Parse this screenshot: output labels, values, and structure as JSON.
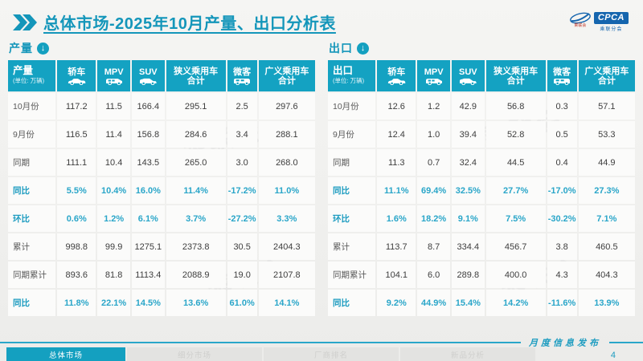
{
  "page": {
    "title": "总体市场-2025年10月产量、出口分析表",
    "logo_text": "CPCA",
    "logo_subtext": "乘联分会",
    "logo_small_text": "乘联会",
    "footer_caption": "月度信息发布",
    "page_number": "4",
    "watermark": "乘联会",
    "accent_color": "#14a0c0",
    "header_color": "#14a2c2",
    "highlight_text_color": "#2aa6c9"
  },
  "footer_tabs": [
    {
      "label": "总体市场",
      "active": true
    },
    {
      "label": "细分市场",
      "active": false
    },
    {
      "label": "厂商排名",
      "active": false
    },
    {
      "label": "新品分析",
      "active": false
    }
  ],
  "tables": [
    {
      "section_title": "产量",
      "row_header": "产量",
      "unit": "(单位: 万辆)",
      "columns": [
        {
          "label": "轿车",
          "icon": "sedan-icon"
        },
        {
          "label": "MPV",
          "icon": "mpv-icon"
        },
        {
          "label": "SUV",
          "icon": "suv-icon"
        },
        {
          "label": "狭义乘用车合计",
          "icon": null
        },
        {
          "label": "微客",
          "icon": "microvan-icon"
        },
        {
          "label": "广义乘用车合计",
          "icon": null
        }
      ],
      "rows": [
        {
          "label": "10月份",
          "highlight": false,
          "values": [
            "117.2",
            "11.5",
            "166.4",
            "295.1",
            "2.5",
            "297.6"
          ]
        },
        {
          "label": "9月份",
          "highlight": false,
          "values": [
            "116.5",
            "11.4",
            "156.8",
            "284.6",
            "3.4",
            "288.1"
          ]
        },
        {
          "label": "同期",
          "highlight": false,
          "values": [
            "111.1",
            "10.4",
            "143.5",
            "265.0",
            "3.0",
            "268.0"
          ]
        },
        {
          "label": "同比",
          "highlight": true,
          "values": [
            "5.5%",
            "10.4%",
            "16.0%",
            "11.4%",
            "-17.2%",
            "11.0%"
          ]
        },
        {
          "label": "环比",
          "highlight": true,
          "values": [
            "0.6%",
            "1.2%",
            "6.1%",
            "3.7%",
            "-27.2%",
            "3.3%"
          ]
        },
        {
          "label": "累计",
          "highlight": false,
          "values": [
            "998.8",
            "99.9",
            "1275.1",
            "2373.8",
            "30.5",
            "2404.3"
          ]
        },
        {
          "label": "同期累计",
          "highlight": false,
          "values": [
            "893.6",
            "81.8",
            "1113.4",
            "2088.9",
            "19.0",
            "2107.8"
          ]
        },
        {
          "label": "同比",
          "highlight": true,
          "values": [
            "11.8%",
            "22.1%",
            "14.5%",
            "13.6%",
            "61.0%",
            "14.1%"
          ]
        }
      ]
    },
    {
      "section_title": "出口",
      "row_header": "出口",
      "unit": "(单位: 万辆)",
      "columns": [
        {
          "label": "轿车",
          "icon": "sedan-icon"
        },
        {
          "label": "MPV",
          "icon": "mpv-icon"
        },
        {
          "label": "SUV",
          "icon": "suv-icon"
        },
        {
          "label": "狭义乘用车合计",
          "icon": null
        },
        {
          "label": "微客",
          "icon": "microvan-icon"
        },
        {
          "label": "广义乘用车合计",
          "icon": null
        }
      ],
      "rows": [
        {
          "label": "10月份",
          "highlight": false,
          "values": [
            "12.6",
            "1.2",
            "42.9",
            "56.8",
            "0.3",
            "57.1"
          ]
        },
        {
          "label": "9月份",
          "highlight": false,
          "values": [
            "12.4",
            "1.0",
            "39.4",
            "52.8",
            "0.5",
            "53.3"
          ]
        },
        {
          "label": "同期",
          "highlight": false,
          "values": [
            "11.3",
            "0.7",
            "32.4",
            "44.5",
            "0.4",
            "44.9"
          ]
        },
        {
          "label": "同比",
          "highlight": true,
          "values": [
            "11.1%",
            "69.4%",
            "32.5%",
            "27.7%",
            "-17.0%",
            "27.3%"
          ]
        },
        {
          "label": "环比",
          "highlight": true,
          "values": [
            "1.6%",
            "18.2%",
            "9.1%",
            "7.5%",
            "-30.2%",
            "7.1%"
          ]
        },
        {
          "label": "累计",
          "highlight": false,
          "values": [
            "113.7",
            "8.7",
            "334.4",
            "456.7",
            "3.8",
            "460.5"
          ]
        },
        {
          "label": "同期累计",
          "highlight": false,
          "values": [
            "104.1",
            "6.0",
            "289.8",
            "400.0",
            "4.3",
            "404.3"
          ]
        },
        {
          "label": "同比",
          "highlight": true,
          "values": [
            "9.2%",
            "44.9%",
            "15.4%",
            "14.2%",
            "-11.6%",
            "13.9%"
          ]
        }
      ]
    }
  ]
}
